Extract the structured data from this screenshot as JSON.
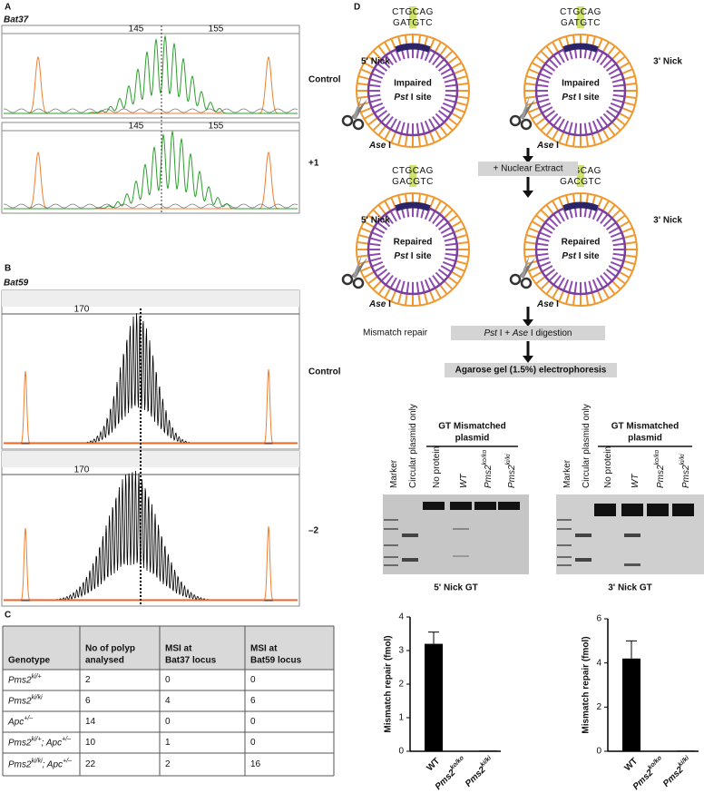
{
  "panel_a": {
    "label": "A",
    "locus": "Bat37",
    "ruler_ticks": [
      "145",
      "155"
    ],
    "traces": [
      "Control",
      "+1"
    ]
  },
  "panel_b": {
    "label": "B",
    "locus": "Bat59",
    "ruler_ticks": [
      "170"
    ],
    "traces": [
      "Control",
      "–2"
    ]
  },
  "panel_c": {
    "label": "C",
    "table": {
      "header": [
        [
          "Genotype"
        ],
        [
          "No of polyp",
          "analysed"
        ],
        [
          "MSI at",
          "Bat37 locus"
        ],
        [
          "MSI at",
          "Bat59 locus"
        ]
      ],
      "rows": [
        {
          "genotype": [
            {
              "t": "Pms2",
              "sup": "ki/+"
            }
          ],
          "cells": [
            "2",
            "0",
            "0"
          ]
        },
        {
          "genotype": [
            {
              "t": "Pms2",
              "sup": "ki/ki"
            }
          ],
          "cells": [
            "6",
            "4",
            "6"
          ]
        },
        {
          "genotype": [
            {
              "t": "Apc",
              "sup": "+/–"
            }
          ],
          "cells": [
            "14",
            "0",
            "0"
          ]
        },
        {
          "genotype": [
            {
              "t": "Pms2",
              "sup": "ki/+"
            },
            {
              "t": "; Apc",
              "sup": "+/–"
            }
          ],
          "cells": [
            "10",
            "1",
            "0"
          ]
        },
        {
          "genotype": [
            {
              "t": "Pms2",
              "sup": "ki/ki"
            },
            {
              "t": "; Apc",
              "sup": "+/–"
            }
          ],
          "cells": [
            "22",
            "2",
            "16"
          ]
        }
      ]
    }
  },
  "panel_d": {
    "label": "D",
    "plasmids": [
      {
        "nick": "5' Nick",
        "state": "Impaired",
        "site": [
          {
            "t": "Pst",
            "i": true
          },
          {
            "t": " I site"
          }
        ],
        "top": [
          "CT",
          "G",
          "CAG"
        ],
        "bottom": [
          "GA",
          "T",
          "GTC"
        ],
        "cut": [
          {
            "t": "Ase",
            "i": true
          },
          {
            "t": " I"
          }
        ]
      },
      {
        "nick": "3' Nick",
        "state": "Impaired",
        "site": [
          {
            "t": "Pst",
            "i": true
          },
          {
            "t": " I site"
          }
        ],
        "top": [
          "CT",
          "G",
          "CAG"
        ],
        "bottom": [
          "GA",
          "T",
          "GTC"
        ],
        "cut": [
          {
            "t": "Ase",
            "i": true
          },
          {
            "t": " I"
          }
        ]
      },
      {
        "nick": "5' Nick",
        "state": "Repaired",
        "site": [
          {
            "t": "Pst",
            "i": true
          },
          {
            "t": " I site"
          }
        ],
        "top": [
          "CT",
          "G",
          "CAG"
        ],
        "bottom": [
          "GA",
          "C",
          "GTC"
        ],
        "cut": [
          {
            "t": "Ase",
            "i": true
          },
          {
            "t": " I"
          }
        ]
      },
      {
        "nick": "3' Nick",
        "state": "Repaired",
        "site": [
          {
            "t": "Pst",
            "i": true
          },
          {
            "t": " I site"
          }
        ],
        "top": [
          "CT",
          "G",
          "CAG"
        ],
        "bottom": [
          "GA",
          "C",
          "GTC"
        ],
        "cut": [
          {
            "t": "Ase",
            "i": true
          },
          {
            "t": " I"
          }
        ]
      }
    ],
    "step1": "+ Nuclear Extract",
    "step2_note": "Mismatch repair",
    "step2": [
      {
        "t": "Pst",
        "i": true
      },
      {
        "t": " I + "
      },
      {
        "t": "Ase",
        "i": true
      },
      {
        "t": " I digestion"
      }
    ],
    "step3": "Agarose gel (1.5%) electrophoresis",
    "gels": [
      {
        "group": [
          "GT Mismatched",
          "plasmid"
        ],
        "caption": "5' Nick GT"
      },
      {
        "group": [
          "GT Mismatched",
          "plasmid"
        ],
        "caption": "3' Nick GT"
      }
    ],
    "lanes": [
      [
        {
          "t": "Marker"
        }
      ],
      [
        {
          "t": "Circular plasmid only"
        }
      ],
      [
        {
          "t": "No protein"
        }
      ],
      [
        {
          "t": "WT",
          "i": true
        }
      ],
      [
        {
          "t": "Pms2",
          "i": true,
          "sup": "ko/ko"
        }
      ],
      [
        {
          "t": "Pms2",
          "i": true,
          "sup": "ki/ki"
        }
      ]
    ]
  },
  "chart_data": [
    {
      "type": "bar",
      "ylabel": "Mismatch repair (fmol)",
      "categories": [
        [
          {
            "t": "WT"
          }
        ],
        [
          {
            "t": "Pms2",
            "sup": "ko/ko"
          }
        ],
        [
          {
            "t": "Pms2",
            "sup": "ki/ki"
          }
        ]
      ],
      "values": [
        3.2,
        0,
        0.02
      ],
      "errors": [
        0.35,
        0,
        0
      ],
      "color": "#000000",
      "ylim": [
        0,
        4
      ],
      "yticks": [
        0,
        1,
        2,
        3,
        4
      ]
    },
    {
      "type": "bar",
      "ylabel": "Mismatch repair (fmol)",
      "categories": [
        [
          {
            "t": "WT"
          }
        ],
        [
          {
            "t": "Pms2",
            "sup": "ko/ko"
          }
        ],
        [
          {
            "t": "Pms2",
            "sup": "ki/ki"
          }
        ]
      ],
      "values": [
        4.2,
        0,
        0.03
      ],
      "errors": [
        0.8,
        0,
        0
      ],
      "color": "#000000",
      "ylim": [
        0,
        6
      ],
      "yticks": [
        0,
        2,
        4,
        6
      ]
    }
  ]
}
